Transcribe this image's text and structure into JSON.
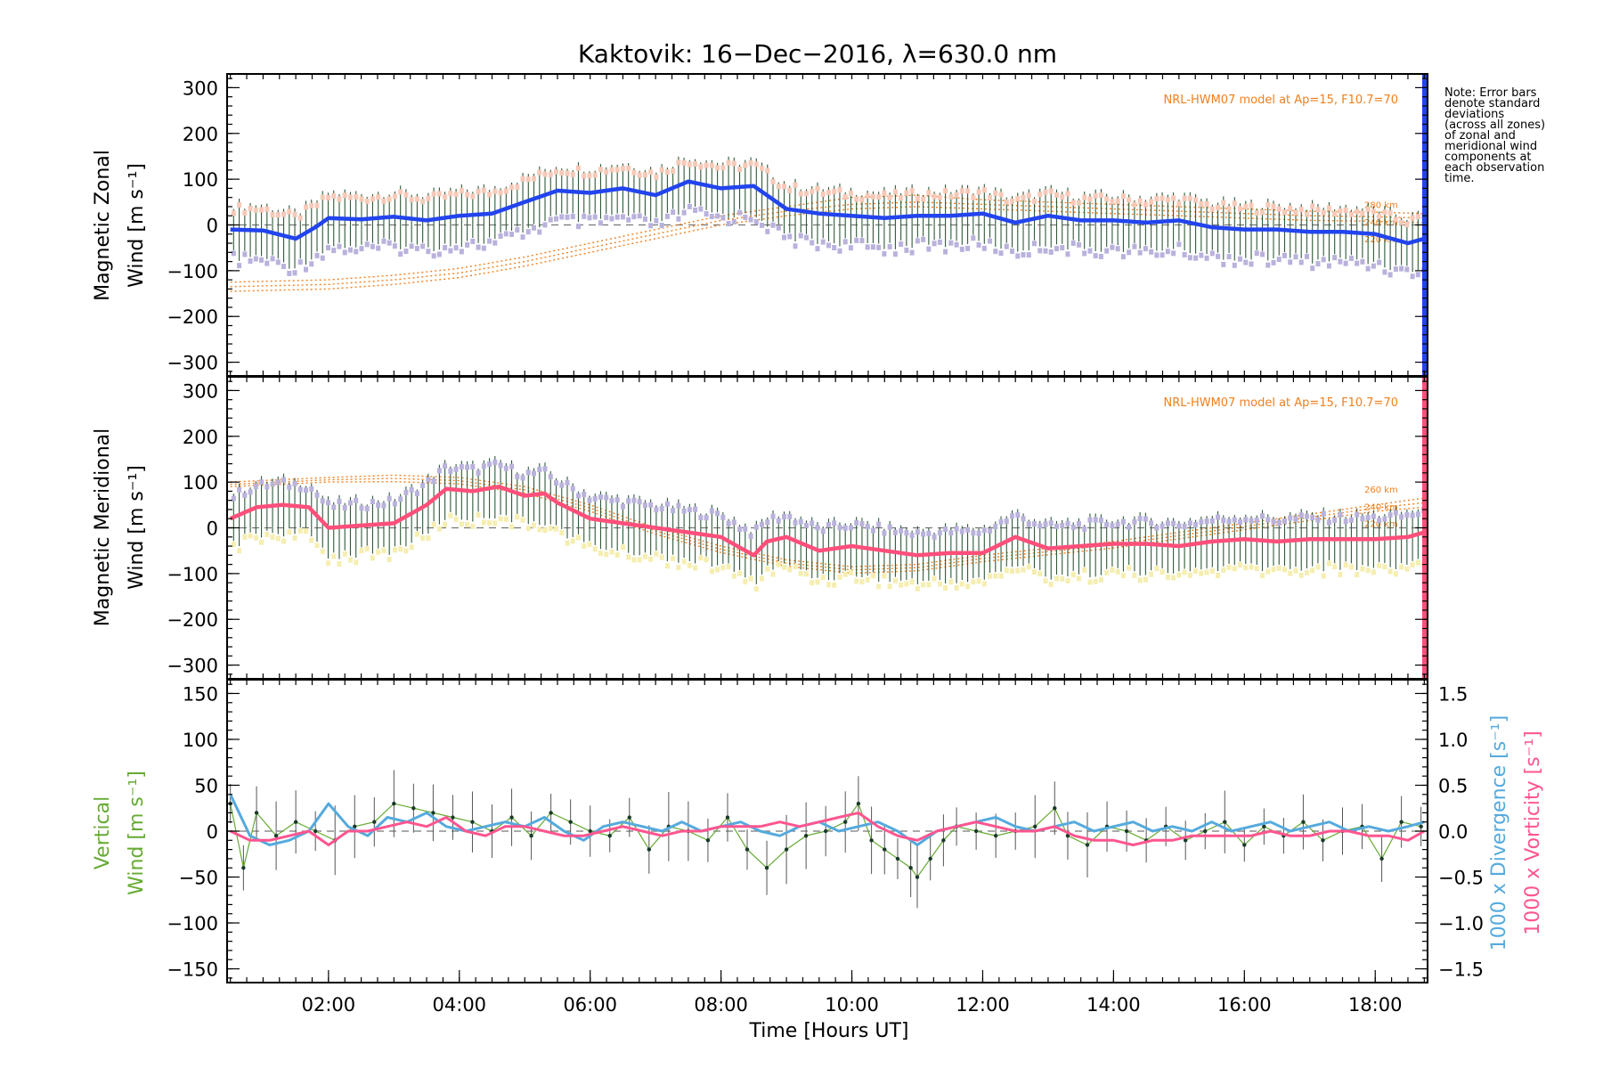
{
  "chart_data": [
    {
      "type": "line",
      "panel": "zonal",
      "title": "Kaktovik: 16−Dec−2016, λ=630.0 nm",
      "ylabel_line1": "Magnetic Zonal",
      "ylabel_line2": "Wind [m s⁻¹]",
      "ylim": [
        -330,
        330
      ],
      "yticks": [
        300,
        200,
        100,
        0,
        -100,
        -200,
        -300
      ],
      "ytick_labels": [
        "300",
        "200",
        "100",
        "0",
        "−100",
        "−200",
        "−300"
      ],
      "model_label": "NRL-HWM07 model at Ap=15, F10.7=70",
      "altitude_labels": [
        "280 km",
        "240 km",
        "220 km"
      ],
      "colors": {
        "mean": "#2244ee",
        "sd_hi": "#f7c9b8",
        "sd_lo": "#b9b2dc",
        "err": "#2f5a3a",
        "model": "#f08020"
      },
      "series": [
        {
          "name": "mean",
          "x": [
            0.5,
            1.0,
            1.5,
            1.8,
            2.0,
            2.5,
            3.0,
            3.5,
            4.0,
            4.5,
            5.0,
            5.5,
            6.0,
            6.5,
            7.0,
            7.5,
            8.0,
            8.5,
            9.0,
            9.5,
            10.0,
            10.5,
            11.0,
            11.5,
            12.0,
            12.5,
            13.0,
            13.5,
            14.0,
            14.5,
            15.0,
            15.5,
            16.0,
            16.5,
            17.0,
            17.5,
            18.0,
            18.5,
            18.75
          ],
          "y": [
            -10,
            -12,
            -30,
            -5,
            15,
            12,
            18,
            10,
            20,
            25,
            50,
            75,
            70,
            80,
            65,
            95,
            80,
            85,
            35,
            25,
            20,
            15,
            20,
            20,
            25,
            5,
            20,
            10,
            10,
            5,
            10,
            -5,
            -10,
            -10,
            -15,
            -15,
            -20,
            -40,
            -30
          ]
        }
      ],
      "model_series": [
        {
          "label": "280 km",
          "x": [
            0.5,
            2,
            3,
            4,
            5,
            6,
            7,
            8,
            9,
            10,
            11,
            12,
            13,
            14,
            15,
            16,
            17,
            18,
            18.75
          ],
          "y": [
            -125,
            -120,
            -110,
            -95,
            -70,
            -40,
            -10,
            20,
            40,
            60,
            65,
            55,
            50,
            45,
            40,
            35,
            30,
            28,
            25
          ]
        },
        {
          "label": "240 km",
          "x": [
            0.5,
            2,
            3,
            4,
            5,
            6,
            7,
            8,
            9,
            10,
            11,
            12,
            13,
            14,
            15,
            16,
            17,
            18,
            18.75
          ],
          "y": [
            -135,
            -130,
            -120,
            -105,
            -80,
            -50,
            -20,
            10,
            30,
            45,
            50,
            45,
            40,
            35,
            30,
            25,
            20,
            18,
            15
          ]
        },
        {
          "label": "220 km",
          "x": [
            0.5,
            2,
            3,
            4,
            5,
            6,
            7,
            8,
            9,
            10,
            11,
            12,
            13,
            14,
            15,
            16,
            17,
            18,
            18.75
          ],
          "y": [
            -145,
            -140,
            -130,
            -115,
            -90,
            -60,
            -30,
            0,
            20,
            35,
            40,
            35,
            30,
            25,
            20,
            15,
            10,
            8,
            5
          ]
        }
      ]
    },
    {
      "type": "line",
      "panel": "meridional",
      "ylabel_line1": "Magnetic Meridional",
      "ylabel_line2": "Wind [m s⁻¹]",
      "ylim": [
        -330,
        330
      ],
      "yticks": [
        300,
        200,
        100,
        0,
        -100,
        -200,
        -300
      ],
      "ytick_labels": [
        "300",
        "200",
        "100",
        "0",
        "−100",
        "−200",
        "−300"
      ],
      "model_label": "NRL-HWM07 model at Ap=15, F10.7=70",
      "altitude_labels": [
        "260 km",
        "240 km",
        "220 km"
      ],
      "colors": {
        "mean": "#ff4f7a",
        "sd_hi": "#b9b2dc",
        "sd_lo": "#f5eeb0",
        "err": "#2f5a3a",
        "model": "#f08020"
      },
      "series": [
        {
          "name": "mean",
          "x": [
            0.5,
            0.9,
            1.3,
            1.7,
            2.0,
            2.5,
            3.0,
            3.5,
            3.8,
            4.2,
            4.6,
            5.0,
            5.3,
            5.5,
            6.0,
            6.5,
            7.0,
            7.5,
            8.0,
            8.5,
            8.7,
            9.0,
            9.5,
            10.0,
            10.5,
            11.0,
            11.5,
            12.0,
            12.5,
            13.0,
            13.5,
            14.0,
            14.5,
            15.0,
            15.5,
            16.0,
            16.5,
            17.0,
            17.5,
            18.0,
            18.5,
            18.75
          ],
          "y": [
            20,
            45,
            50,
            45,
            0,
            5,
            10,
            50,
            85,
            80,
            90,
            70,
            75,
            55,
            20,
            10,
            0,
            -10,
            -20,
            -60,
            -30,
            -20,
            -50,
            -40,
            -50,
            -60,
            -55,
            -55,
            -20,
            -45,
            -40,
            -35,
            -35,
            -40,
            -30,
            -25,
            -30,
            -25,
            -25,
            -25,
            -20,
            -10
          ]
        }
      ],
      "model_series": [
        {
          "label": "260 km",
          "x": [
            0.5,
            2,
            3,
            4,
            5,
            6,
            7,
            8,
            9,
            10,
            11,
            12,
            13,
            14,
            15,
            16,
            17,
            18,
            18.75
          ],
          "y": [
            100,
            110,
            115,
            110,
            90,
            50,
            0,
            -40,
            -70,
            -85,
            -80,
            -60,
            -45,
            -30,
            -10,
            10,
            30,
            50,
            65
          ]
        },
        {
          "label": "240 km",
          "x": [
            0.5,
            2,
            3,
            4,
            5,
            6,
            7,
            8,
            9,
            10,
            11,
            12,
            13,
            14,
            15,
            16,
            17,
            18,
            18.75
          ],
          "y": [
            95,
            105,
            108,
            103,
            83,
            43,
            -7,
            -47,
            -77,
            -92,
            -87,
            -67,
            -52,
            -37,
            -17,
            3,
            23,
            43,
            55
          ]
        },
        {
          "label": "220 km",
          "x": [
            0.5,
            2,
            3,
            4,
            5,
            6,
            7,
            8,
            9,
            10,
            11,
            12,
            13,
            14,
            15,
            16,
            17,
            18,
            18.75
          ],
          "y": [
            90,
            100,
            101,
            96,
            76,
            36,
            -14,
            -54,
            -84,
            -99,
            -94,
            -74,
            -59,
            -44,
            -24,
            -4,
            16,
            36,
            45
          ]
        }
      ]
    },
    {
      "type": "line",
      "panel": "vertical",
      "ylabel_line1": "Vertical",
      "ylabel_line2": "Wind [m s⁻¹]",
      "ylim": [
        -165,
        165
      ],
      "yticks": [
        150,
        100,
        50,
        0,
        -50,
        -100,
        -150
      ],
      "ytick_labels": [
        "150",
        "100",
        "50",
        "0",
        "−50",
        "−100",
        "−150"
      ],
      "y2lim": [
        -1.65,
        1.65
      ],
      "y2ticks": [
        1.5,
        1.0,
        0.5,
        0.0,
        -0.5,
        -1.0,
        -1.5
      ],
      "y2tick_labels": [
        "1.5",
        "1.0",
        "0.5",
        "0.0",
        "−0.5",
        "−1.0",
        "−1.5"
      ],
      "y2label_divergence": "1000 x Divergence [s⁻¹]",
      "y2label_vorticity": "1000 x Vorticity [s⁻¹]",
      "xticks": [
        2,
        4,
        6,
        8,
        10,
        12,
        14,
        16,
        18
      ],
      "xtick_labels": [
        "02:00",
        "04:00",
        "06:00",
        "08:00",
        "10:00",
        "12:00",
        "14:00",
        "16:00",
        "18:00"
      ],
      "xlim": [
        0.45,
        18.8
      ],
      "xlabel": "Time [Hours UT]",
      "colors": {
        "vertical": "#66aa33",
        "divergence": "#55aadd",
        "vorticity": "#ff5590",
        "err": "#555555",
        "point": "#1a3a2a"
      },
      "series": [
        {
          "name": "vertical",
          "x": [
            0.5,
            0.7,
            0.9,
            1.2,
            1.5,
            1.8,
            2.1,
            2.4,
            2.7,
            3.0,
            3.3,
            3.6,
            3.9,
            4.2,
            4.5,
            4.8,
            5.1,
            5.4,
            5.7,
            6.0,
            6.3,
            6.6,
            6.9,
            7.2,
            7.5,
            7.8,
            8.1,
            8.4,
            8.7,
            9.0,
            9.3,
            9.6,
            9.9,
            10.1,
            10.3,
            10.5,
            10.7,
            10.9,
            11.0,
            11.2,
            11.4,
            11.6,
            11.9,
            12.2,
            12.5,
            12.8,
            13.1,
            13.3,
            13.6,
            13.9,
            14.2,
            14.5,
            14.8,
            15.1,
            15.4,
            15.7,
            16.0,
            16.3,
            16.6,
            16.9,
            17.2,
            17.5,
            17.8,
            18.1,
            18.4,
            18.7
          ],
          "y": [
            30,
            -40,
            20,
            -5,
            10,
            0,
            -10,
            5,
            10,
            30,
            25,
            20,
            15,
            10,
            0,
            15,
            -5,
            20,
            10,
            0,
            -5,
            15,
            -20,
            5,
            0,
            -10,
            15,
            -20,
            -40,
            -20,
            -5,
            0,
            10,
            30,
            -10,
            -20,
            -30,
            -40,
            -50,
            -30,
            -10,
            5,
            0,
            -5,
            0,
            5,
            25,
            -5,
            -15,
            5,
            0,
            -10,
            5,
            -10,
            0,
            10,
            -15,
            5,
            -5,
            10,
            -10,
            0,
            5,
            -30,
            10,
            5
          ]
        },
        {
          "name": "divergence",
          "x": [
            0.5,
            0.8,
            1.1,
            1.4,
            1.7,
            2.0,
            2.3,
            2.6,
            2.9,
            3.2,
            3.5,
            3.8,
            4.1,
            4.4,
            4.7,
            5.0,
            5.3,
            5.6,
            5.9,
            6.2,
            6.5,
            6.8,
            7.1,
            7.4,
            7.7,
            8.0,
            8.3,
            8.6,
            8.9,
            9.2,
            9.5,
            9.8,
            10.1,
            10.4,
            10.7,
            11.0,
            11.3,
            11.6,
            11.9,
            12.2,
            12.5,
            12.8,
            13.1,
            13.4,
            13.7,
            14.0,
            14.3,
            14.6,
            14.9,
            15.2,
            15.5,
            15.8,
            16.1,
            16.4,
            16.7,
            17.0,
            17.3,
            17.6,
            17.9,
            18.2,
            18.5,
            18.75
          ],
          "y": [
            0.4,
            -0.05,
            -0.15,
            -0.1,
            0.0,
            0.3,
            0.05,
            -0.05,
            0.15,
            0.1,
            0.2,
            0.05,
            0.0,
            0.05,
            0.1,
            0.05,
            0.15,
            0.0,
            -0.1,
            0.05,
            0.1,
            0.05,
            0.0,
            0.1,
            0.0,
            0.05,
            0.1,
            0.0,
            -0.05,
            0.05,
            0.1,
            0.0,
            0.05,
            0.1,
            0.0,
            -0.15,
            0.0,
            0.05,
            0.1,
            0.15,
            0.05,
            0.0,
            0.05,
            0.1,
            0.0,
            0.05,
            0.1,
            0.0,
            0.05,
            0.0,
            0.1,
            0.0,
            0.05,
            0.1,
            0.0,
            0.05,
            0.1,
            0.0,
            0.05,
            0.0,
            0.05,
            0.1
          ]
        },
        {
          "name": "vorticity",
          "x": [
            0.5,
            0.8,
            1.1,
            1.4,
            1.7,
            2.0,
            2.3,
            2.6,
            2.9,
            3.2,
            3.5,
            3.8,
            4.1,
            4.4,
            4.7,
            5.0,
            5.3,
            5.6,
            5.9,
            6.2,
            6.5,
            6.8,
            7.1,
            7.4,
            7.7,
            8.0,
            8.3,
            8.6,
            8.9,
            9.2,
            9.5,
            9.8,
            10.1,
            10.4,
            10.7,
            11.0,
            11.3,
            11.6,
            11.9,
            12.2,
            12.5,
            12.8,
            13.1,
            13.4,
            13.7,
            14.0,
            14.3,
            14.6,
            14.9,
            15.2,
            15.5,
            15.8,
            16.1,
            16.4,
            16.7,
            17.0,
            17.3,
            17.6,
            17.9,
            18.2,
            18.5,
            18.75
          ],
          "y": [
            0.0,
            -0.1,
            -0.1,
            -0.05,
            0.0,
            -0.15,
            0.0,
            0.0,
            0.05,
            0.1,
            0.05,
            0.15,
            0.0,
            -0.05,
            0.05,
            0.05,
            0.0,
            -0.05,
            -0.05,
            0.0,
            0.05,
            0.0,
            -0.05,
            0.0,
            0.0,
            0.05,
            0.05,
            0.05,
            0.1,
            0.05,
            0.1,
            0.15,
            0.2,
            0.05,
            -0.05,
            -0.1,
            0.0,
            0.05,
            0.1,
            0.05,
            0.0,
            0.0,
            0.05,
            -0.05,
            -0.1,
            -0.1,
            -0.15,
            -0.1,
            -0.1,
            -0.05,
            -0.05,
            -0.05,
            -0.05,
            0.0,
            -0.05,
            -0.05,
            0.0,
            0.0,
            -0.05,
            -0.05,
            -0.1,
            0.0
          ]
        }
      ]
    }
  ],
  "note_lines": [
    "Note: Error bars",
    "denote standard",
    "deviations",
    "(across all zones)",
    "of zonal and",
    "meridional wind",
    "components at",
    "each observation",
    "time."
  ]
}
